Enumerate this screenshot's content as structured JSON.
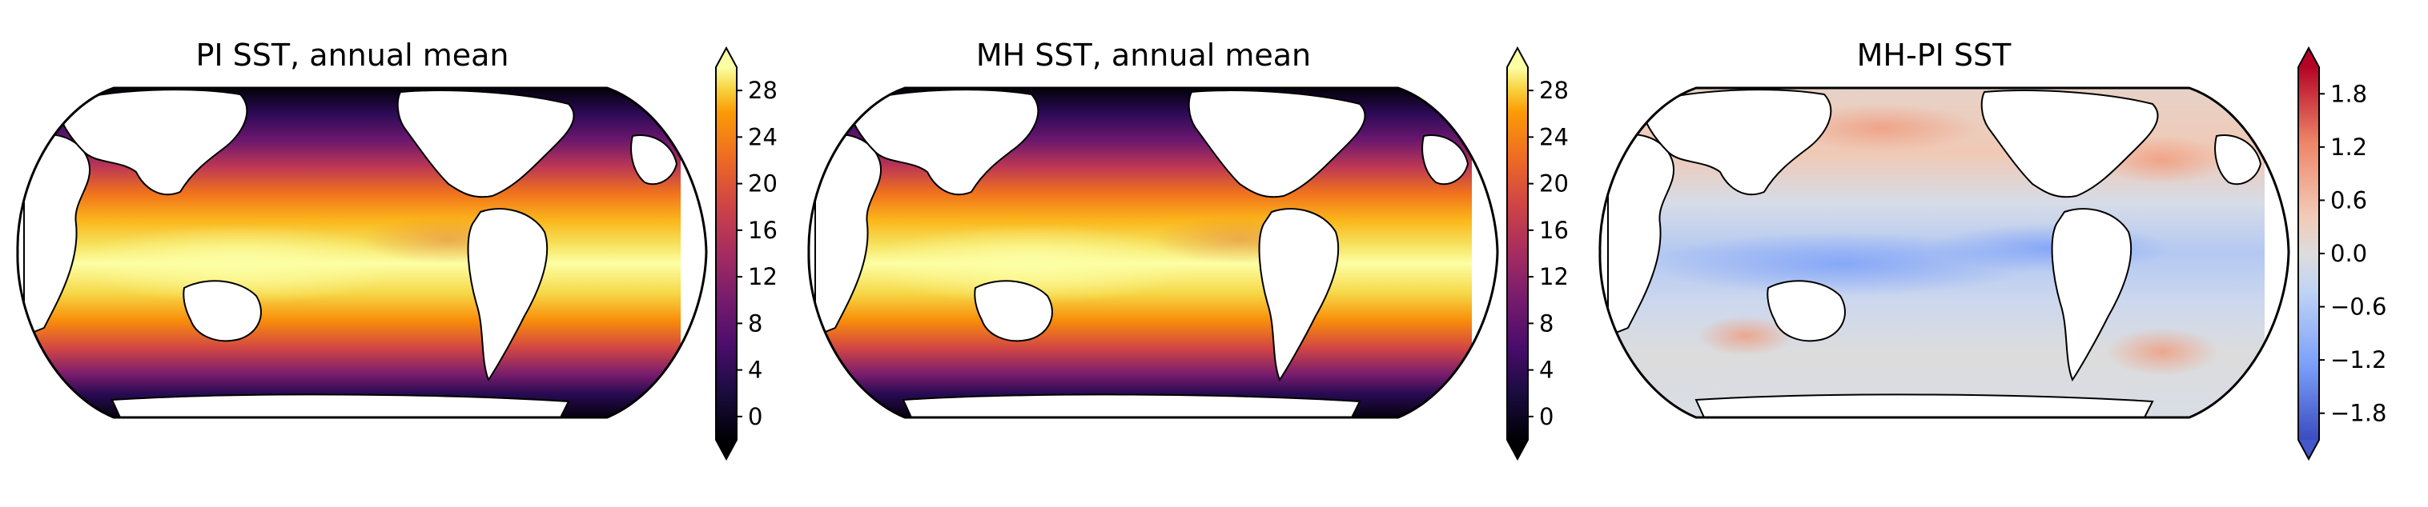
{
  "figure": {
    "panels": [
      {
        "title": "PI SST, annual mean",
        "variable": "sea surface temperature",
        "colormap": "inferno",
        "colorbar_ticks": [
          "0",
          "4",
          "8",
          "12",
          "16",
          "20",
          "24",
          "28"
        ],
        "colorbar_range": [
          -2,
          30
        ],
        "extend": "both",
        "extend_colors": {
          "low": "#000004",
          "high": "#fcffa4"
        }
      },
      {
        "title": "MH SST, annual mean",
        "variable": "sea surface temperature",
        "colormap": "inferno",
        "colorbar_ticks": [
          "0",
          "4",
          "8",
          "12",
          "16",
          "20",
          "24",
          "28"
        ],
        "colorbar_range": [
          -2,
          30
        ],
        "extend": "both",
        "extend_colors": {
          "low": "#000004",
          "high": "#fcffa4"
        }
      },
      {
        "title": "MH-PI SST",
        "variable": "sea surface temperature difference",
        "colormap": "coolwarm",
        "colorbar_ticks": [
          "1.8",
          "1.2",
          "0.6",
          "0.0",
          "−0.6",
          "−1.2",
          "−1.8"
        ],
        "colorbar_range": [
          -2.1,
          2.1
        ],
        "extend": "both",
        "extend_colors": {
          "low": "#4358cb",
          "high": "#b40426"
        }
      }
    ],
    "projection": "Robinson, central longitude 180",
    "land_color": "#ffffff",
    "coastline_color": "#000000"
  }
}
